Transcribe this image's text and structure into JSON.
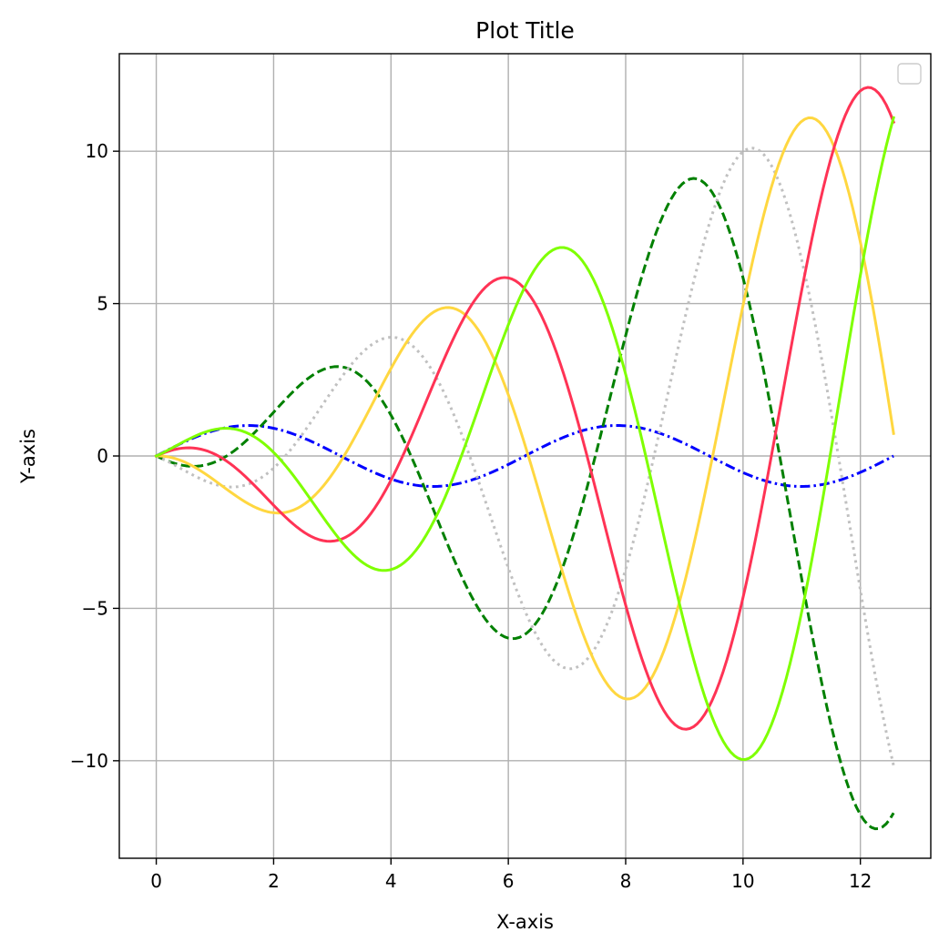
{
  "chart_data": {
    "type": "line",
    "title": "Plot Title",
    "xlabel": "X-axis",
    "ylabel": "Y-axis",
    "xlim": [
      -0.63,
      13.2
    ],
    "ylim": [
      -13.2,
      13.2
    ],
    "x_ticks": [
      0,
      2,
      4,
      6,
      8,
      10,
      12
    ],
    "x_tick_labels": [
      "0",
      "2",
      "4",
      "6",
      "8",
      "10",
      "12"
    ],
    "y_ticks": [
      -10,
      -5,
      0,
      5,
      10
    ],
    "y_tick_labels": [
      "−10",
      "−5",
      "0",
      "5",
      "10"
    ],
    "grid": true,
    "legend": {
      "placement": "top-right",
      "entries": []
    },
    "x_range": [
      0,
      12.566
    ],
    "n_points": 200,
    "series": [
      {
        "function": "sin(x)",
        "color": "#0000ff",
        "dash": "dashdot",
        "sample_points": [
          [
            0,
            0
          ],
          [
            1.57,
            1.0
          ],
          [
            4.71,
            -1.0
          ],
          [
            7.85,
            1.0
          ],
          [
            11.0,
            -1.0
          ],
          [
            12.57,
            0
          ]
        ]
      },
      {
        "function": "x*sin(x - 1.2)",
        "color": "#008000",
        "dash": "dashed",
        "sample_points": [
          [
            0,
            0
          ],
          [
            0.6,
            -0.3
          ],
          [
            2.9,
            2.75
          ],
          [
            5.8,
            -5.75
          ],
          [
            8.9,
            8.85
          ],
          [
            12.1,
            -12.0
          ],
          [
            12.57,
            -10.8
          ]
        ]
      },
      {
        "function": "x*sin(x - 2.2)",
        "color": "#c0c0c0",
        "dash": "dotted",
        "sample_points": [
          [
            0,
            0
          ],
          [
            1.0,
            -0.8
          ],
          [
            3.8,
            3.7
          ],
          [
            6.9,
            -6.8
          ],
          [
            9.9,
            9.9
          ],
          [
            12.57,
            -11.4
          ]
        ]
      },
      {
        "function": "x*sin(x - 3.2)",
        "color": "#ffd740",
        "dash": "solid",
        "sample_points": [
          [
            0,
            0
          ],
          [
            2.0,
            -1.7
          ],
          [
            4.75,
            4.65
          ],
          [
            7.85,
            -7.75
          ],
          [
            11.0,
            10.8
          ],
          [
            12.57,
            -1.8
          ]
        ]
      },
      {
        "function": "x*sin(x - 4.2)",
        "color": "#ff3355",
        "dash": "solid",
        "sample_points": [
          [
            0,
            0
          ],
          [
            0.4,
            0.2
          ],
          [
            2.8,
            -2.6
          ],
          [
            5.7,
            5.65
          ],
          [
            8.8,
            -8.75
          ],
          [
            11.95,
            11.85
          ],
          [
            12.57,
            9.5
          ]
        ]
      },
      {
        "function": "x*sin(x - 5.2)",
        "color": "#7fff00",
        "dash": "solid",
        "sample_points": [
          [
            0,
            0
          ],
          [
            1.0,
            0.75
          ],
          [
            3.7,
            -3.55
          ],
          [
            6.7,
            6.6
          ],
          [
            9.8,
            -9.75
          ],
          [
            12.57,
            12.05
          ]
        ]
      }
    ]
  }
}
